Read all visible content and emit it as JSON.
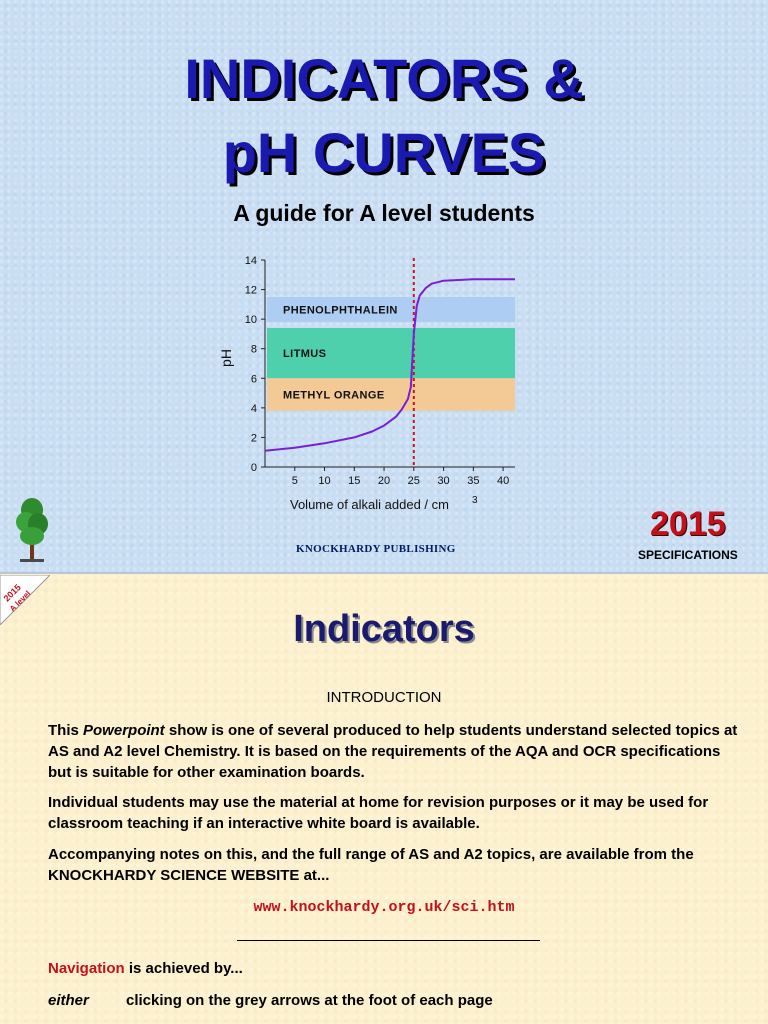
{
  "slide1": {
    "title_line1": "INDICATORS &",
    "title_line2": "pH CURVES",
    "subtitle": "A guide for A level students",
    "publisher": "KNOCKHARDY PUBLISHING",
    "year": "2015",
    "specifications": "SPECIFICATIONS"
  },
  "badge": {
    "line1": "2015",
    "line2": "A level"
  },
  "chart_data": {
    "type": "line",
    "xlabel": "Volume of alkali added / cm",
    "xlabel_sup": "3",
    "ylabel": "pH",
    "xlim": [
      0,
      42
    ],
    "ylim": [
      0,
      14
    ],
    "x_ticks": [
      5,
      10,
      15,
      20,
      25,
      30,
      35,
      40
    ],
    "y_ticks": [
      0,
      2,
      4,
      6,
      8,
      10,
      12,
      14
    ],
    "equivalence_x": 25,
    "bands": [
      {
        "label": "PHENOLPHTHALEIN",
        "from": 9.8,
        "to": 11.5,
        "color": "#aecdf3"
      },
      {
        "label": "LITMUS",
        "from": 6.0,
        "to": 9.4,
        "color": "#4fd0ad"
      },
      {
        "label": "METHYL ORANGE",
        "from": 3.8,
        "to": 6.0,
        "color": "#f3c995"
      }
    ],
    "series": [
      {
        "color": "#7b1fd6",
        "x": [
          0,
          5,
          10,
          15,
          18,
          20,
          22,
          23,
          24,
          24.5,
          25,
          25.5,
          26,
          27,
          28,
          30,
          35,
          40,
          42
        ],
        "y": [
          1.1,
          1.3,
          1.6,
          2.0,
          2.4,
          2.8,
          3.4,
          3.9,
          4.6,
          5.4,
          9.0,
          10.9,
          11.6,
          12.1,
          12.4,
          12.6,
          12.7,
          12.7,
          12.7
        ]
      }
    ]
  },
  "slide2": {
    "heading": "Indicators",
    "intro_heading": "INTRODUCTION",
    "p1_before": "This ",
    "p1_italic": "Powerpoint",
    "p1_after": " show is one of several produced to help students understand selected topics at AS and A2 level Chemistry. It is based on the requirements of the AQA and OCR specifications but is suitable for other examination boards.",
    "p2": "Individual students may use the material at home for revision purposes or it may be used for classroom teaching if an interactive white board is available.",
    "p3": "Accompanying notes on this, and the full range of AS and A2 topics, are available from the KNOCKHARDY SCIENCE WEBSITE at...",
    "url": "www.knockhardy.org.uk/sci.htm",
    "nav_red": "Navigation",
    "nav_rest": " is achieved by...",
    "either_word": "either",
    "either_rest": "clicking on the grey arrows at the foot of each page"
  }
}
